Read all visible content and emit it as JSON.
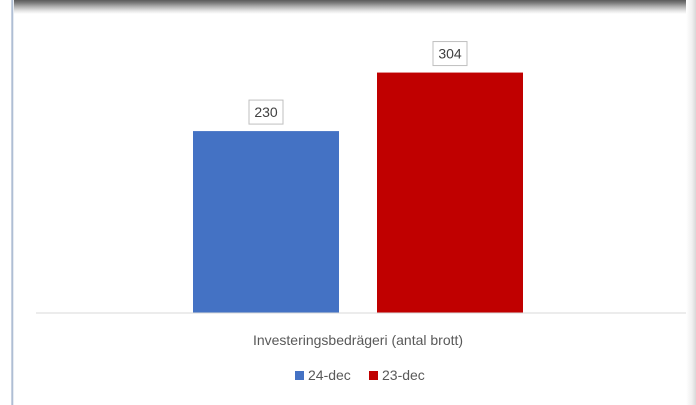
{
  "chart_data": {
    "type": "bar",
    "title": "",
    "xlabel": "",
    "ylabel": "",
    "categories": [
      "Investeringsbedrägeri (antal brott)"
    ],
    "series": [
      {
        "name": "24-dec",
        "values": [
          230
        ],
        "color": "#4472C4"
      },
      {
        "name": "23-dec",
        "values": [
          304
        ],
        "color": "#C00000"
      }
    ],
    "ylim": [
      0,
      330
    ],
    "grid": false,
    "legend_position": "bottom",
    "data_labels": true
  }
}
